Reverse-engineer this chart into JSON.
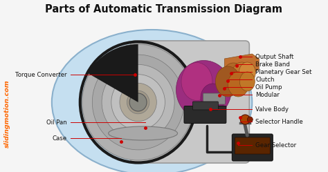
{
  "title": "Parts of Automatic Transmission Diagram",
  "title_fontsize": 10.5,
  "bg_color": "#f5f5f5",
  "label_color": "#111111",
  "arrow_color": "#cc0000",
  "dot_color": "#cc0000",
  "watermark": "slidingmotion.com",
  "side_text": "slidingmotion.com",
  "side_color": "#ff6600",
  "label_fontsize": 6.2,
  "right_labels": [
    [
      "Output Shaft",
      370,
      82,
      348,
      82
    ],
    [
      "Brake Band",
      370,
      93,
      343,
      95
    ],
    [
      "Planetary Gear Set",
      370,
      104,
      335,
      106
    ],
    [
      "Clutch",
      370,
      115,
      330,
      117
    ],
    [
      "Oil Pump",
      370,
      126,
      325,
      128
    ],
    [
      "Modular",
      370,
      137,
      318,
      138
    ],
    [
      "Valve Body",
      370,
      158,
      305,
      158
    ],
    [
      "Selector Handle",
      370,
      176,
      348,
      170
    ],
    [
      "Gear Selector",
      370,
      210,
      345,
      207
    ]
  ],
  "left_labels": [
    [
      "Torque Converter",
      97,
      108,
      195,
      108
    ],
    [
      "Oil Pan",
      97,
      177,
      210,
      185
    ],
    [
      "Case",
      97,
      200,
      175,
      205
    ]
  ]
}
